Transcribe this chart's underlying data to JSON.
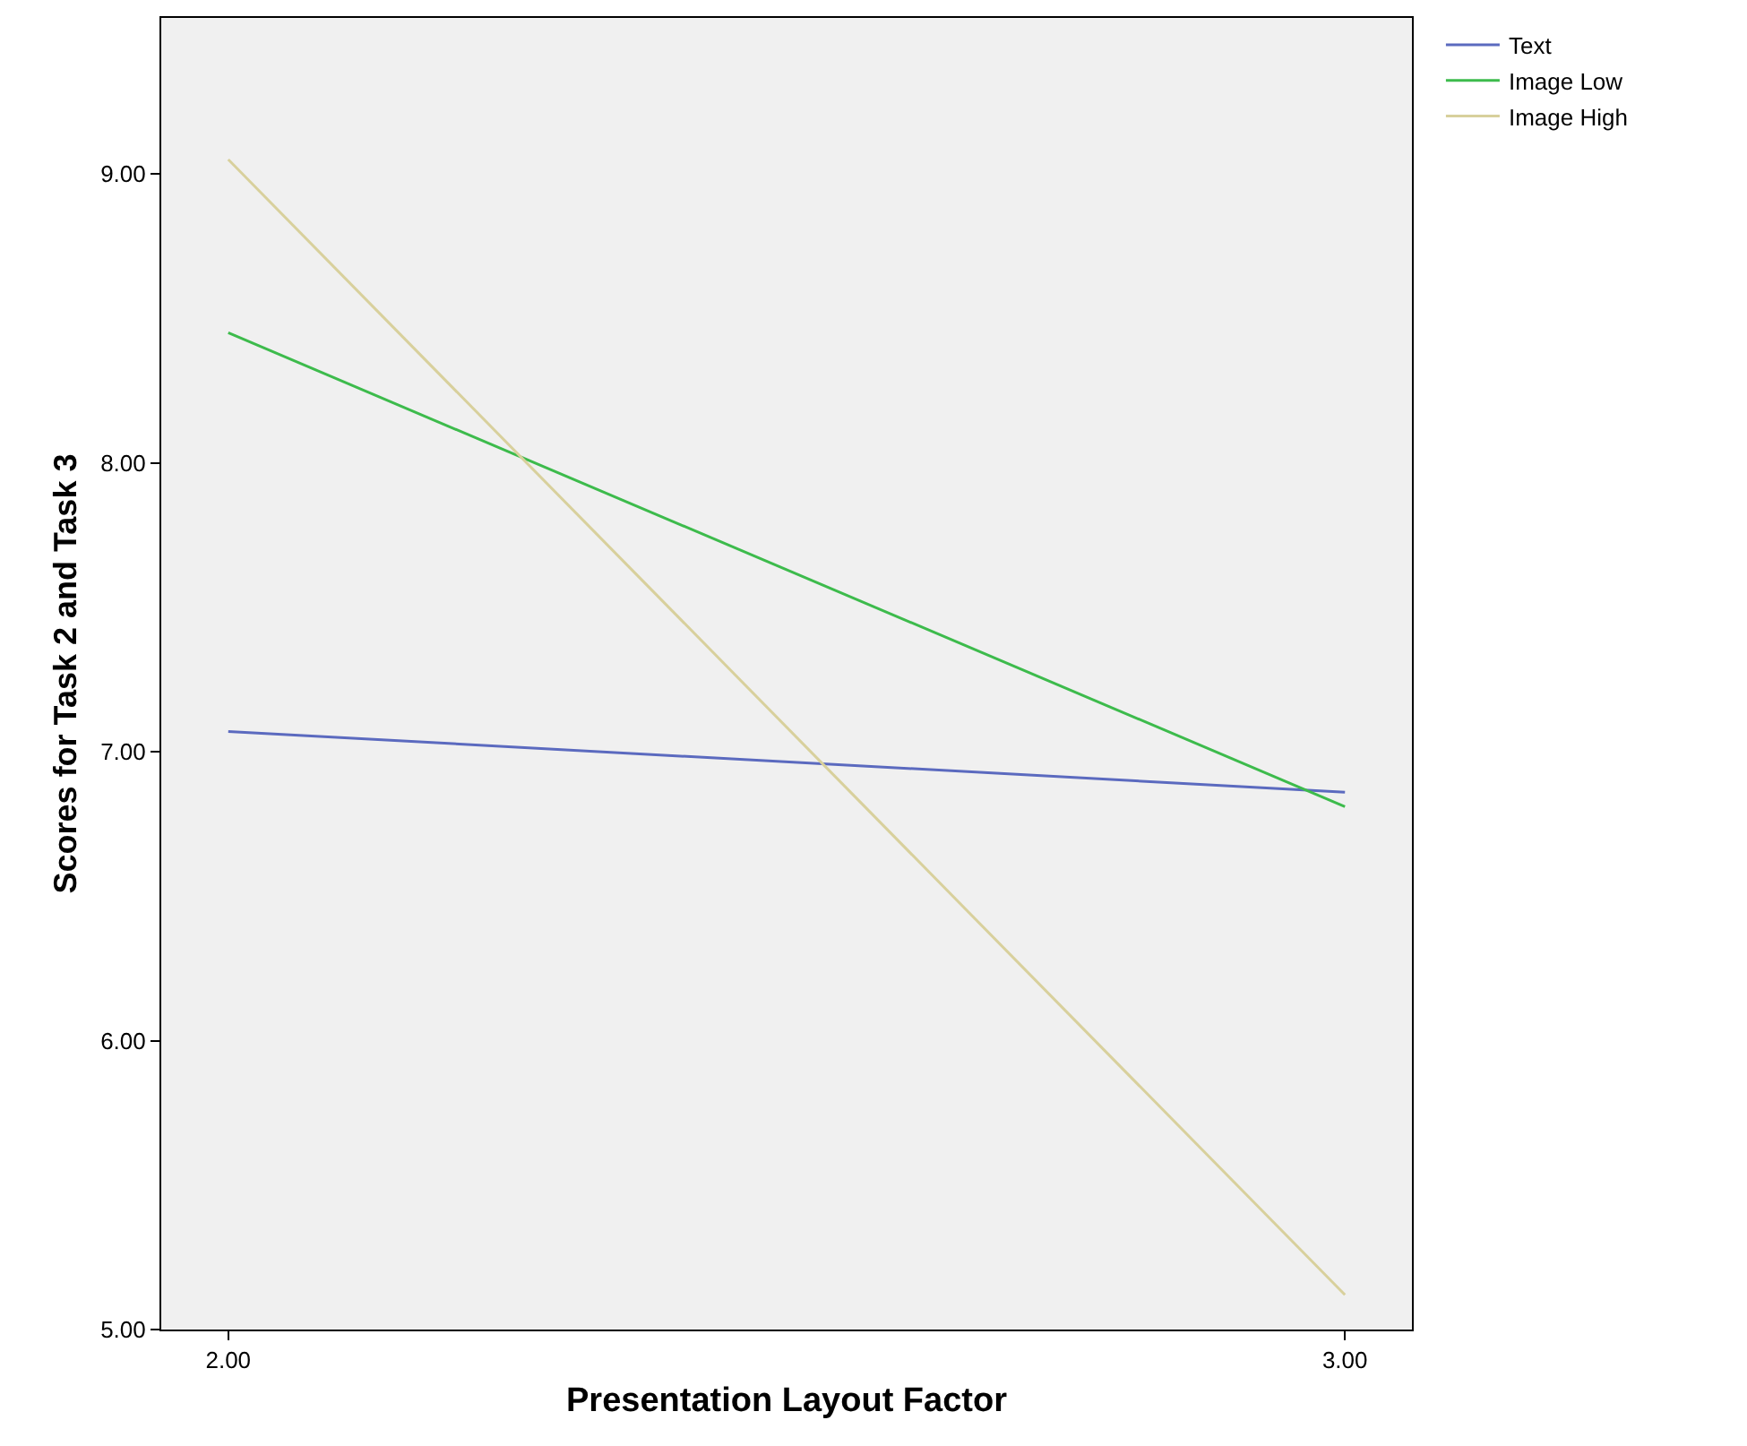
{
  "chart_data": {
    "type": "line",
    "xlabel": "Presentation Layout Factor",
    "ylabel": "Scores for Task 2 and Task 3",
    "x": [
      2,
      3
    ],
    "series": [
      {
        "name": "Text",
        "color": "#5b6abf",
        "values": [
          7.07,
          6.86
        ]
      },
      {
        "name": "Image Low",
        "color": "#3dbb4c",
        "values": [
          8.45,
          6.81
        ]
      },
      {
        "name": "Image High",
        "color": "#d8d09c",
        "values": [
          9.05,
          5.12
        ]
      }
    ],
    "xlim": [
      1.94,
      3.06
    ],
    "xticks": [
      {
        "value": 2,
        "label": "2.00"
      },
      {
        "value": 3,
        "label": "3.00"
      }
    ],
    "ylim": [
      5.0,
      9.54
    ],
    "yticks": [
      {
        "value": 5,
        "label": "5.00"
      },
      {
        "value": 6,
        "label": "6.00"
      },
      {
        "value": 7,
        "label": "7.00"
      },
      {
        "value": 8,
        "label": "8.00"
      },
      {
        "value": 9,
        "label": "9.00"
      }
    ],
    "grid": false,
    "legend": "top right",
    "marker": "none",
    "line_style": "solid"
  }
}
